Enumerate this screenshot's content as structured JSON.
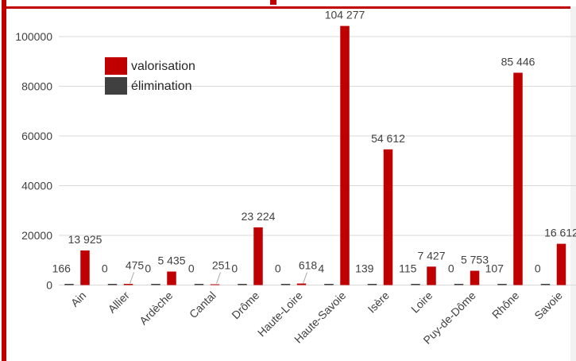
{
  "chart_data": {
    "type": "bar",
    "categories": [
      "Ain",
      "Allier",
      "Ardèche",
      "Cantal",
      "Drôme",
      "Haute-Loire",
      "Haute-Savoie",
      "Isère",
      "Loire",
      "Puy-de-Dôme",
      "Rhône",
      "Savoie"
    ],
    "series": [
      {
        "name": "élimination",
        "color": "#404040",
        "values": [
          166,
          0,
          0,
          0,
          0,
          0,
          4,
          139,
          115,
          0,
          107,
          0
        ],
        "labels": [
          "166",
          "0",
          "0",
          "0",
          "0",
          "0",
          "4",
          "139",
          "115",
          "0",
          "107",
          "0"
        ]
      },
      {
        "name": "valorisation",
        "color": "#c00000",
        "values": [
          13925,
          475,
          5435,
          251,
          23224,
          618,
          104277,
          54612,
          7427,
          5753,
          85446,
          16612
        ],
        "labels": [
          "13 925",
          "475",
          "5 435",
          "251",
          "23 224",
          "618",
          "104 277",
          "54 612",
          "7 427",
          "5 753",
          "85 446",
          "16 612"
        ]
      }
    ],
    "yticks": [
      "0",
      "20000",
      "40000",
      "60000",
      "80000",
      "100000"
    ],
    "ylim": [
      0,
      104277
    ],
    "legend": [
      "valorisation",
      "élimination"
    ],
    "legend_position": "top-left",
    "grid": true
  }
}
